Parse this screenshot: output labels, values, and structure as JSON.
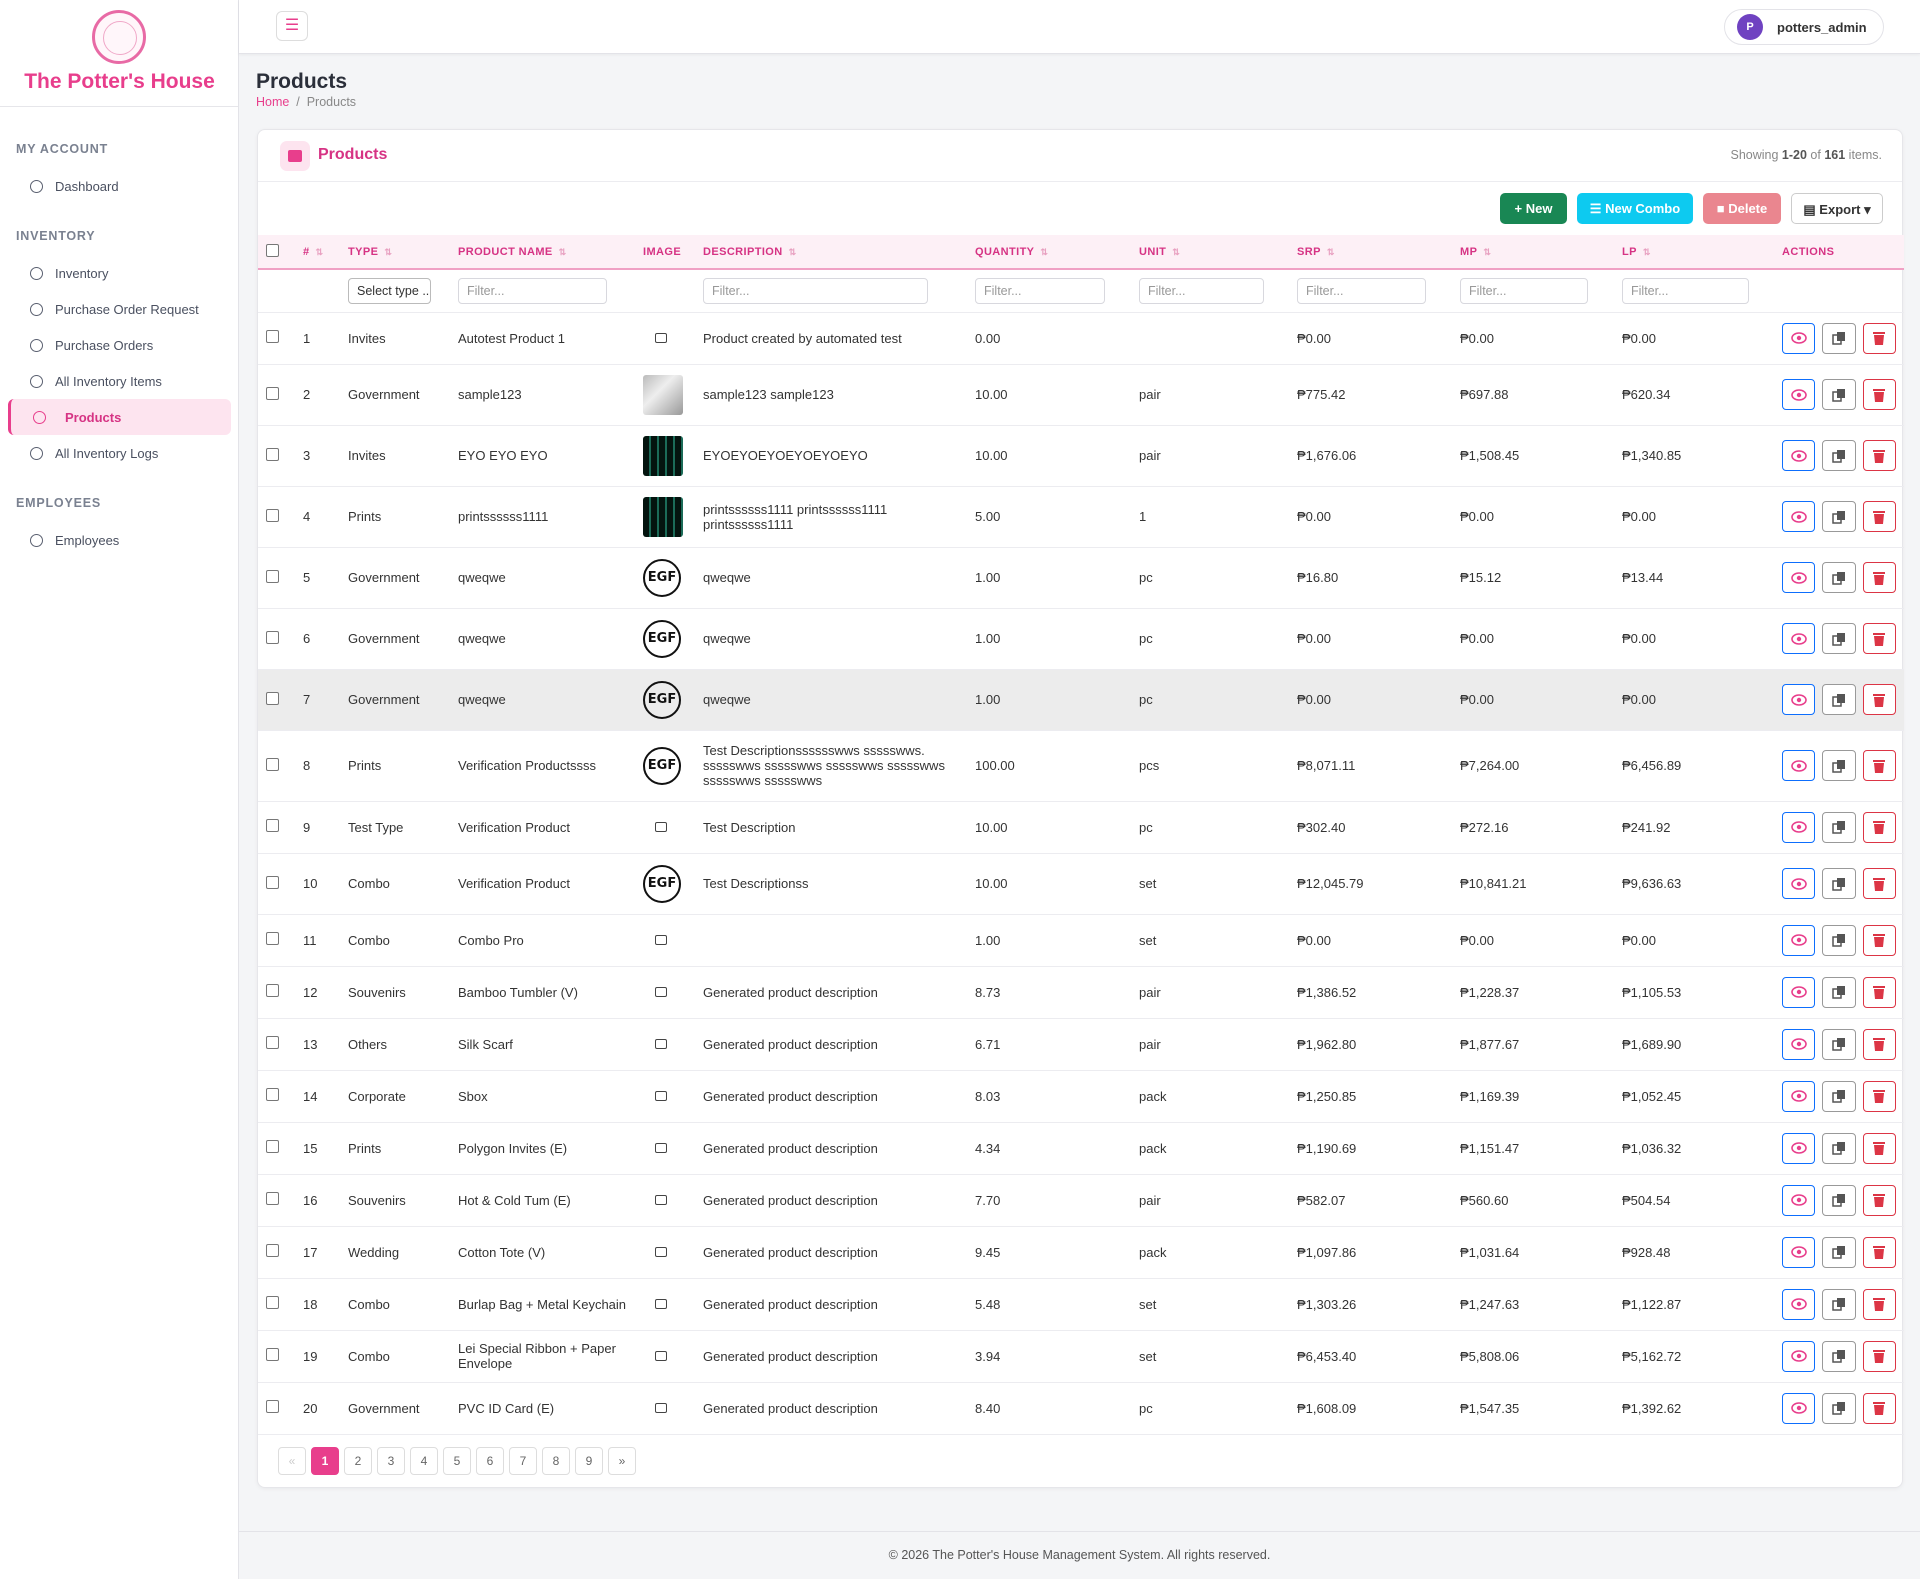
{
  "sidebar": {
    "brand": "The Potter's House",
    "sections": [
      {
        "label": "MY ACCOUNT",
        "items": [
          "Dashboard"
        ]
      },
      {
        "label": "INVENTORY",
        "items": [
          "Inventory",
          "Purchase Order Request",
          "Purchase Orders",
          "All Inventory Items",
          "Products",
          "All Inventory Logs"
        ]
      },
      {
        "label": "EMPLOYEES",
        "items": [
          "Employees"
        ]
      }
    ],
    "active": "Products"
  },
  "topbar": {
    "user_initial": "P",
    "username": "potters_admin"
  },
  "page": {
    "title": "Products",
    "breadcrumb": [
      "Home",
      "Products"
    ]
  },
  "card": {
    "title": "Products",
    "showing": [
      "Showing ",
      "1-20",
      " of ",
      "161",
      " items."
    ],
    "buttons": [
      "New",
      "New Combo",
      "Delete",
      "Export"
    ]
  },
  "table": {
    "columns": [
      "#",
      "TYPE",
      "PRODUCT NAME",
      "IMAGE",
      "DESCRIPTION",
      "QUANTITY",
      "UNIT",
      "SRP",
      "MP",
      "LP",
      "ACTIONS"
    ],
    "filters": {
      "type": "Select type ..",
      "text": "Filter..."
    },
    "rows": [
      [
        "1",
        "Invites",
        "Autotest Product 1",
        "Product created by automated test",
        "0.00",
        "",
        "₱0.00",
        "₱0.00",
        "₱0.00"
      ],
      [
        "2",
        "Government",
        "sample123",
        "sample123 sample123",
        "10.00",
        "pair",
        "₱775.42",
        "₱697.88",
        "₱620.34"
      ],
      [
        "3",
        "Invites",
        "EYO EYO EYO",
        "EYOEYOEYOEYOEYOEYO",
        "10.00",
        "pair",
        "₱1,676.06",
        "₱1,508.45",
        "₱1,340.85"
      ],
      [
        "4",
        "Prints",
        "printssssss1111",
        "printssssss1111 printssssss1111 printssssss1111",
        "5.00",
        "1",
        "₱0.00",
        "₱0.00",
        "₱0.00"
      ],
      [
        "5",
        "Government",
        "qweqwe",
        "qweqwe",
        "1.00",
        "pc",
        "₱16.80",
        "₱15.12",
        "₱13.44"
      ],
      [
        "6",
        "Government",
        "qweqwe",
        "qweqwe",
        "1.00",
        "pc",
        "₱0.00",
        "₱0.00",
        "₱0.00"
      ],
      [
        "7",
        "Government",
        "qweqwe",
        "qweqwe",
        "1.00",
        "pc",
        "₱0.00",
        "₱0.00",
        "₱0.00"
      ],
      [
        "8",
        "Prints",
        "Verification Productssss",
        "Test Descriptionsssssswws ssssswws. ssssswws ssssswws ssssswws ssssswws ssssswws ssssswws",
        "100.00",
        "pcs",
        "₱8,071.11",
        "₱7,264.00",
        "₱6,456.89"
      ],
      [
        "9",
        "Test Type",
        "Verification Product",
        "Test Description",
        "10.00",
        "pc",
        "₱302.40",
        "₱272.16",
        "₱241.92"
      ],
      [
        "10",
        "Combo",
        "Verification Product",
        "Test Descriptionss",
        "10.00",
        "set",
        "₱12,045.79",
        "₱10,841.21",
        "₱9,636.63"
      ],
      [
        "11",
        "Combo",
        "Combo Pro",
        "",
        "1.00",
        "set",
        "₱0.00",
        "₱0.00",
        "₱0.00"
      ],
      [
        "12",
        "Souvenirs",
        "Bamboo Tumbler (V)",
        "Generated product description",
        "8.73",
        "pair",
        "₱1,386.52",
        "₱1,228.37",
        "₱1,105.53"
      ],
      [
        "13",
        "Others",
        "Silk Scarf",
        "Generated product description",
        "6.71",
        "pair",
        "₱1,962.80",
        "₱1,877.67",
        "₱1,689.90"
      ],
      [
        "14",
        "Corporate",
        "Sbox",
        "Generated product description",
        "8.03",
        "pack",
        "₱1,250.85",
        "₱1,169.39",
        "₱1,052.45"
      ],
      [
        "15",
        "Prints",
        "Polygon Invites (E)",
        "Generated product description",
        "4.34",
        "pack",
        "₱1,190.69",
        "₱1,151.47",
        "₱1,036.32"
      ],
      [
        "16",
        "Souvenirs",
        "Hot & Cold Tum (E)",
        "Generated product description",
        "7.70",
        "pair",
        "₱582.07",
        "₱560.60",
        "₱504.54"
      ],
      [
        "17",
        "Wedding",
        "Cotton Tote (V)",
        "Generated product description",
        "9.45",
        "pack",
        "₱1,097.86",
        "₱1,031.64",
        "₱928.48"
      ],
      [
        "18",
        "Combo",
        "Burlap Bag + Metal Keychain",
        "Generated product description",
        "5.48",
        "set",
        "₱1,303.26",
        "₱1,247.63",
        "₱1,122.87"
      ],
      [
        "19",
        "Combo",
        "Lei Special Ribbon + Paper Envelope",
        "Generated product description",
        "3.94",
        "set",
        "₱6,453.40",
        "₱5,808.06",
        "₱5,162.72"
      ],
      [
        "20",
        "Government",
        "PVC ID Card (E)",
        "Generated product description",
        "8.40",
        "pc",
        "₱1,608.09",
        "₱1,547.35",
        "₱1,392.62"
      ]
    ]
  },
  "pagination": [
    "«",
    "1",
    "2",
    "3",
    "4",
    "5",
    "6",
    "7",
    "8",
    "9",
    "»"
  ],
  "footer": "© 2026 The Potter's House Management System. All rights reserved."
}
